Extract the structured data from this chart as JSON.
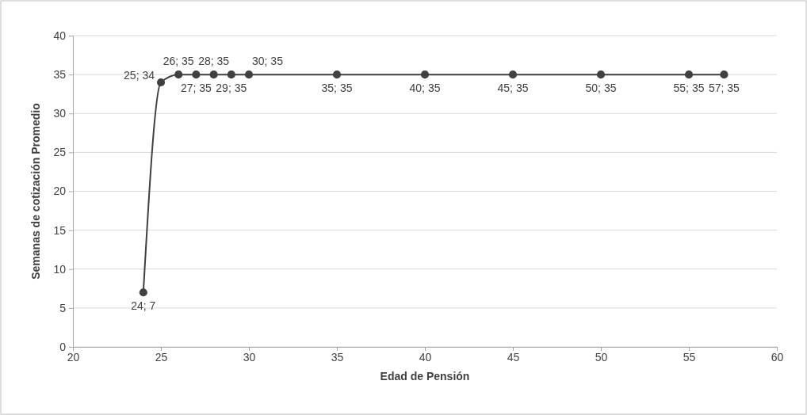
{
  "chart_data": {
    "type": "line",
    "xlabel": "Edad de Pensión",
    "ylabel": "Semanas de cotización Promedio",
    "x": [
      24,
      25,
      26,
      27,
      28,
      29,
      30,
      35,
      40,
      45,
      50,
      55,
      57
    ],
    "series": [
      {
        "color": "#404040",
        "values": [
          7,
          34,
          35,
          35,
          35,
          35,
          35,
          35,
          35,
          35,
          35,
          35,
          35
        ],
        "value_labels": [
          "24; 7",
          "25; 34",
          "26; 35",
          "27; 35",
          "28; 35",
          "29; 35",
          "30; 35",
          "35; 35",
          "40; 35",
          "45; 35",
          "50; 35",
          "55; 35",
          "57; 35"
        ]
      }
    ],
    "xlim": [
      20,
      60
    ],
    "xticks": [
      20,
      25,
      30,
      35,
      40,
      45,
      50,
      55,
      60
    ],
    "ylim": [
      0,
      40
    ],
    "yticks": [
      0,
      5,
      10,
      15,
      20,
      25,
      30,
      35,
      40
    ],
    "grid": "y",
    "marker": "circle",
    "line_style": "solid"
  }
}
